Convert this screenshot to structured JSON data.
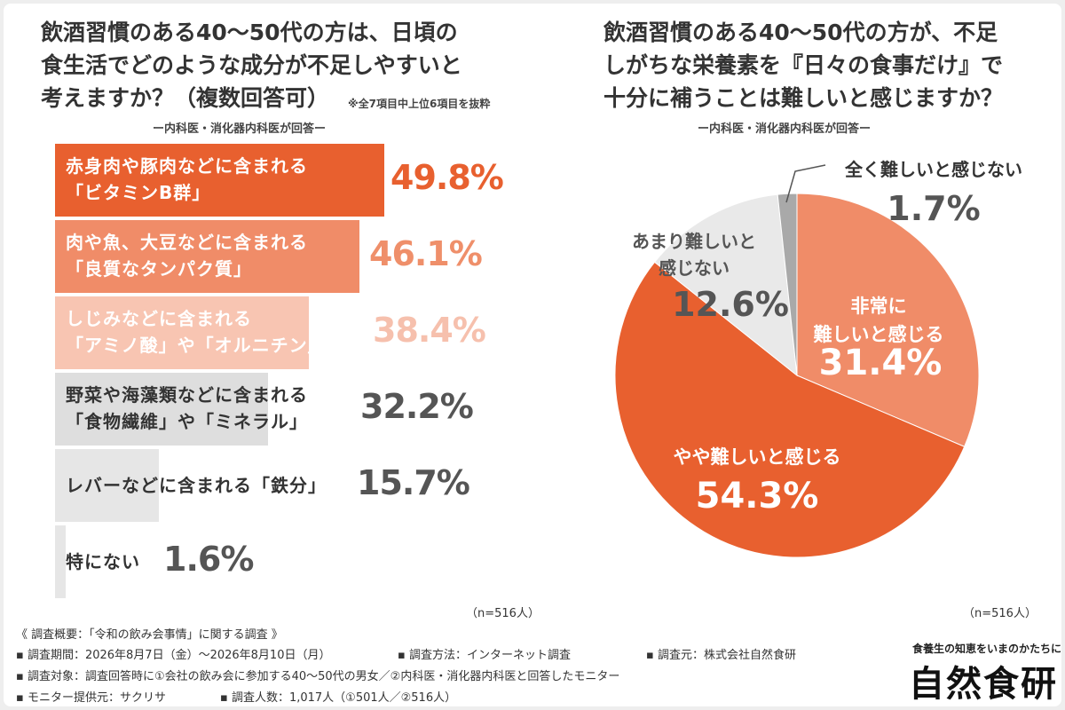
{
  "colors": {
    "bar1": "#e8602f",
    "bar2": "#f08c68",
    "bar3": "#f8c5b2",
    "bar_gray": "#dedede",
    "bar_gray_light": "#e6e6e6",
    "value1": "#e8602f",
    "value2": "#ef8f6a",
    "value3": "#f6c0ad",
    "value_gray": "#555555",
    "pie_very_hard": "#f08c68",
    "pie_somewhat_hard": "#e8602f",
    "pie_not_very": "#e9e9e9",
    "pie_not_at_all": "#a9a9a9"
  },
  "left": {
    "title": "飲酒習慣のある40～50代の方は、日頃の\n食生活でどのような成分が不足しやすいと\n考えますか？（複数回答可）",
    "note": "※全7項目中上位6項目を抜粋",
    "respondents": "ー内科医・消化器内科医が回答ー",
    "n": "（n=516人）"
  },
  "right": {
    "title": "飲酒習慣のある40～50代の方が、不足\nしがちな栄養素を『日々の食事だけ』で\n十分に補うことは難しいと感じますか？",
    "respondents": "ー内科医・消化器内科医が回答ー",
    "n": "（n=516人）"
  },
  "chart_data": [
    {
      "type": "bar",
      "orientation": "horizontal",
      "categories": [
        "赤身肉や豚肉などに含まれる\n「ビタミンB群」",
        "肉や魚、大豆などに含まれる\n「良質なタンパク質」",
        "しじみなどに含まれる\n「アミノ酸」や「オルニチン」",
        "野菜や海藻類などに含まれる\n「食物繊維」や「ミネラル」",
        "レバーなどに含まれる「鉄分」",
        "特にない"
      ],
      "values": [
        49.8,
        46.1,
        38.4,
        32.2,
        15.7,
        1.6
      ],
      "value_labels": [
        "49.8%",
        "46.1%",
        "38.4%",
        "32.2%",
        "15.7%",
        "1.6%"
      ],
      "unit": "%",
      "xlim": [
        0,
        60
      ],
      "grid": false,
      "legend": "none"
    },
    {
      "type": "pie",
      "start": "top, clockwise",
      "slices": [
        {
          "label": "非常に\n難しいと感じる",
          "value": 31.4,
          "value_label": "31.4%"
        },
        {
          "label": "やや難しいと感じる",
          "value": 54.3,
          "value_label": "54.3%"
        },
        {
          "label": "あまり難しいと\n感じない",
          "value": 12.6,
          "value_label": "12.6%"
        },
        {
          "label": "全く難しいと感じない",
          "value": 1.7,
          "value_label": "1.7%"
        }
      ]
    }
  ],
  "footer": {
    "overview": "《 調査概要：「令和の飲み会事情」に関する調査 》",
    "period": "▪ 調査期間：2026年8月7日（金）～2026年8月10日（月）",
    "method": "▪ 調査方法：インターネット調査",
    "source": "▪ 調査元：株式会社自然食研",
    "target": "▪ 調査対象：調査回答時に①会社の飲み会に参加する40～50代の男女／②内科医・消化器内科医と回答したモニター",
    "provider": "▪ モニター提供元：サクリサ",
    "count": "▪ 調査人数：1,017人（①501人／②516人）"
  },
  "brand": {
    "tagline": "食養生の知恵をいまのかたちに",
    "logo": "自然食研"
  }
}
